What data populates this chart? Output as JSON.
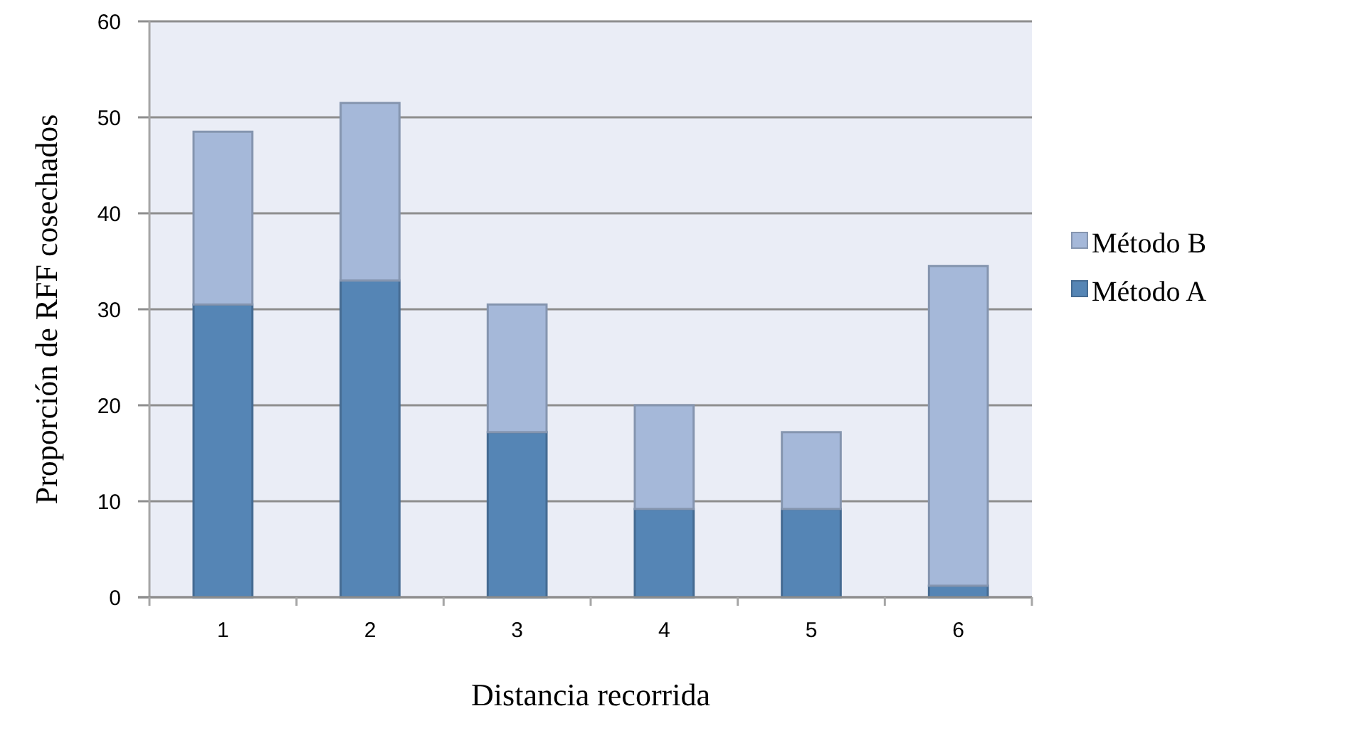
{
  "chart_data": {
    "type": "bar",
    "stacked": true,
    "xlabel": "Distancia recorrida",
    "ylabel": "Proporción de RFF cosechados",
    "categories": [
      "1",
      "2",
      "3",
      "4",
      "5",
      "6"
    ],
    "series": [
      {
        "name": "Método A",
        "color": "#5585b5",
        "values": [
          30.5,
          33,
          17.2,
          9.2,
          9.2,
          1.2
        ]
      },
      {
        "name": "Método B",
        "color": "#a5b8d9",
        "values": [
          18,
          18.5,
          13.3,
          10.8,
          8,
          33.3
        ]
      }
    ],
    "ylim": [
      0,
      60
    ],
    "yticks": [
      0,
      10,
      20,
      30,
      40,
      50,
      60
    ],
    "grid": "y",
    "legend": "right"
  }
}
